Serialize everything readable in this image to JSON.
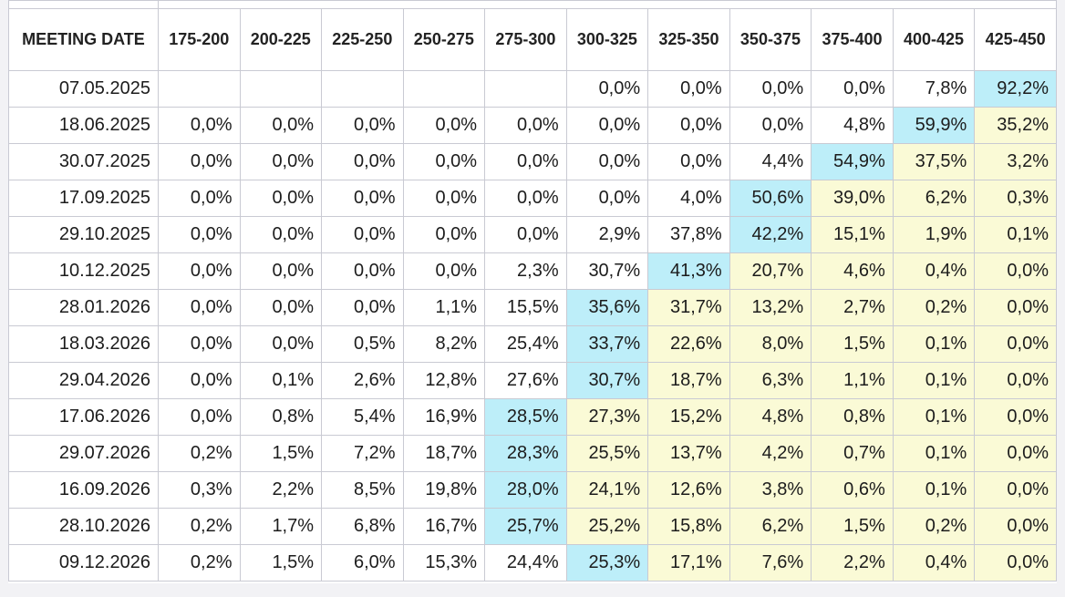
{
  "table": {
    "columns": [
      "MEETING DATE",
      "175-200",
      "200-225",
      "225-250",
      "250-275",
      "275-300",
      "300-325",
      "325-350",
      "350-375",
      "375-400",
      "400-425",
      "425-450"
    ],
    "rows": [
      {
        "date": "07.05.2025",
        "values": [
          "",
          "",
          "",
          "",
          "",
          "0,0%",
          "0,0%",
          "0,0%",
          "0,0%",
          "7,8%",
          "92,2%"
        ],
        "highlight": 10
      },
      {
        "date": "18.06.2025",
        "values": [
          "0,0%",
          "0,0%",
          "0,0%",
          "0,0%",
          "0,0%",
          "0,0%",
          "0,0%",
          "0,0%",
          "4,8%",
          "59,9%",
          "35,2%"
        ],
        "highlight": 9
      },
      {
        "date": "30.07.2025",
        "values": [
          "0,0%",
          "0,0%",
          "0,0%",
          "0,0%",
          "0,0%",
          "0,0%",
          "0,0%",
          "4,4%",
          "54,9%",
          "37,5%",
          "3,2%"
        ],
        "highlight": 8
      },
      {
        "date": "17.09.2025",
        "values": [
          "0,0%",
          "0,0%",
          "0,0%",
          "0,0%",
          "0,0%",
          "0,0%",
          "4,0%",
          "50,6%",
          "39,0%",
          "6,2%",
          "0,3%"
        ],
        "highlight": 7
      },
      {
        "date": "29.10.2025",
        "values": [
          "0,0%",
          "0,0%",
          "0,0%",
          "0,0%",
          "0,0%",
          "2,9%",
          "37,8%",
          "42,2%",
          "15,1%",
          "1,9%",
          "0,1%"
        ],
        "highlight": 7
      },
      {
        "date": "10.12.2025",
        "values": [
          "0,0%",
          "0,0%",
          "0,0%",
          "0,0%",
          "2,3%",
          "30,7%",
          "41,3%",
          "20,7%",
          "4,6%",
          "0,4%",
          "0,0%"
        ],
        "highlight": 6
      },
      {
        "date": "28.01.2026",
        "values": [
          "0,0%",
          "0,0%",
          "0,0%",
          "1,1%",
          "15,5%",
          "35,6%",
          "31,7%",
          "13,2%",
          "2,7%",
          "0,2%",
          "0,0%"
        ],
        "highlight": 5
      },
      {
        "date": "18.03.2026",
        "values": [
          "0,0%",
          "0,0%",
          "0,5%",
          "8,2%",
          "25,4%",
          "33,7%",
          "22,6%",
          "8,0%",
          "1,5%",
          "0,1%",
          "0,0%"
        ],
        "highlight": 5
      },
      {
        "date": "29.04.2026",
        "values": [
          "0,0%",
          "0,1%",
          "2,6%",
          "12,8%",
          "27,6%",
          "30,7%",
          "18,7%",
          "6,3%",
          "1,1%",
          "0,1%",
          "0,0%"
        ],
        "highlight": 5
      },
      {
        "date": "17.06.2026",
        "values": [
          "0,0%",
          "0,8%",
          "5,4%",
          "16,9%",
          "28,5%",
          "27,3%",
          "15,2%",
          "4,8%",
          "0,8%",
          "0,1%",
          "0,0%"
        ],
        "highlight": 4
      },
      {
        "date": "29.07.2026",
        "values": [
          "0,2%",
          "1,5%",
          "7,2%",
          "18,7%",
          "28,3%",
          "25,5%",
          "13,7%",
          "4,2%",
          "0,7%",
          "0,1%",
          "0,0%"
        ],
        "highlight": 4
      },
      {
        "date": "16.09.2026",
        "values": [
          "0,3%",
          "2,2%",
          "8,5%",
          "19,8%",
          "28,0%",
          "24,1%",
          "12,6%",
          "3,8%",
          "0,6%",
          "0,1%",
          "0,0%"
        ],
        "highlight": 4
      },
      {
        "date": "28.10.2026",
        "values": [
          "0,2%",
          "1,7%",
          "6,8%",
          "16,7%",
          "25,7%",
          "25,2%",
          "15,8%",
          "6,2%",
          "1,5%",
          "0,2%",
          "0,0%"
        ],
        "highlight": 4
      },
      {
        "date": "09.12.2026",
        "values": [
          "0,2%",
          "1,5%",
          "6,0%",
          "15,3%",
          "24,4%",
          "25,3%",
          "17,1%",
          "7,6%",
          "2,2%",
          "0,4%",
          "0,0%"
        ],
        "highlight": 5
      }
    ]
  },
  "colors": {
    "highlight_blue": "#bdeef9",
    "highlight_yellow": "#fafad6",
    "border": "#c9cad3"
  }
}
